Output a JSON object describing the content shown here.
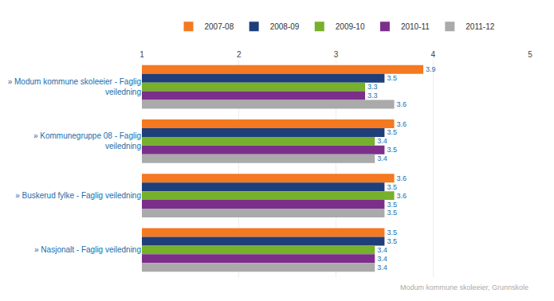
{
  "chart_data": {
    "type": "bar",
    "orientation": "horizontal",
    "categories": [
      "» Modum kommune skoleeier - Faglig\nveiledning",
      "» Kommunegruppe 08 - Faglig\nveiledning",
      "» Buskerud fylke - Faglig veiledning",
      "» Nasjonalt - Faglig veiledning"
    ],
    "series": [
      {
        "name": "2007-08",
        "color": "#f47920",
        "values": [
          3.9,
          3.6,
          3.6,
          3.5
        ]
      },
      {
        "name": "2008-09",
        "color": "#1f3f7a",
        "values": [
          3.5,
          3.5,
          3.5,
          3.5
        ]
      },
      {
        "name": "2009-10",
        "color": "#77b02a",
        "values": [
          3.3,
          3.4,
          3.6,
          3.4
        ]
      },
      {
        "name": "2010-11",
        "color": "#7b2f8b",
        "values": [
          3.3,
          3.5,
          3.5,
          3.4
        ]
      },
      {
        "name": "2011-12",
        "color": "#aaaaaa",
        "values": [
          3.6,
          3.4,
          3.5,
          3.4
        ]
      }
    ],
    "xlim": [
      1,
      5
    ],
    "xticks": [
      1,
      2,
      3,
      4,
      5
    ],
    "grid": true,
    "legend": "top",
    "data_labels": true,
    "annotations": [
      "Modum kommune skoleeier, Grunnskole"
    ]
  }
}
